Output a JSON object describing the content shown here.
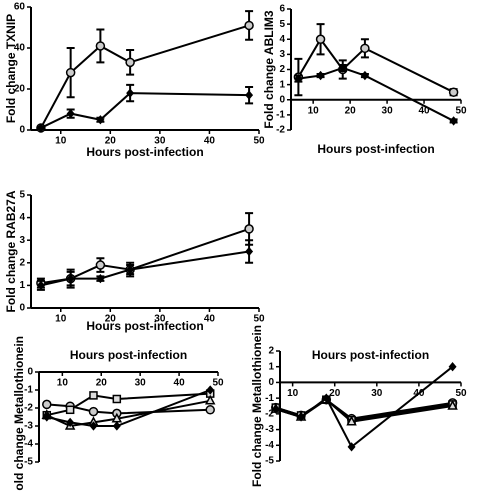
{
  "chart_data": [
    {
      "type": "line",
      "x_label": "Hours post-infection",
      "y_label": "Fold change TXNIP",
      "xlabel_position": "bottom",
      "xlim": [
        4,
        50
      ],
      "ylim": [
        0,
        60
      ],
      "xticks": [
        10,
        20,
        30,
        40,
        50
      ],
      "yticks": [
        0,
        20,
        40,
        60
      ],
      "x": [
        6,
        12,
        18,
        24,
        48
      ],
      "series": [
        {
          "color": "#000000",
          "marker": "circle",
          "values": [
            1,
            28,
            41,
            33,
            51
          ],
          "errors": [
            0.5,
            12,
            8,
            6,
            7
          ]
        },
        {
          "color": "#000000",
          "marker": "diamond",
          "values": [
            1,
            8,
            5,
            18,
            17
          ],
          "errors": [
            0.5,
            2,
            1,
            4,
            4
          ]
        }
      ]
    },
    {
      "type": "line",
      "x_label": "Hours post-infection",
      "y_label": "Fold change ABLIM3",
      "xlabel_position": "bottom",
      "xlim": [
        4,
        50
      ],
      "ylim": [
        -2,
        6
      ],
      "xticks": [
        10,
        20,
        30,
        40,
        50
      ],
      "yticks": [
        -2,
        -1,
        0,
        1,
        2,
        3,
        4,
        5,
        6
      ],
      "x": [
        6,
        12,
        18,
        24,
        48
      ],
      "series": [
        {
          "color": "#000000",
          "marker": "circle",
          "values": [
            1.5,
            4,
            2,
            3.4,
            0.5
          ],
          "errors": [
            1.2,
            1,
            0.6,
            0.6,
            0.2
          ]
        },
        {
          "color": "#000000",
          "marker": "diamond",
          "values": [
            1.4,
            1.6,
            2.1,
            1.6,
            -1.4
          ],
          "errors": [
            0.2,
            0.1,
            0.2,
            0.1,
            0.1
          ]
        }
      ]
    },
    {
      "type": "line",
      "x_label": "Hours post-infection",
      "y_label": "Fold change RAB27A",
      "xlabel_position": "bottom",
      "xlim": [
        4,
        50
      ],
      "ylim": [
        0,
        5
      ],
      "xticks": [
        10,
        20,
        30,
        40,
        50
      ],
      "yticks": [
        0,
        1,
        2,
        3,
        4,
        5
      ],
      "x": [
        6,
        12,
        18,
        24,
        48
      ],
      "series": [
        {
          "color": "#000000",
          "marker": "circle",
          "values": [
            1.1,
            1.3,
            1.9,
            1.7,
            3.5
          ],
          "errors": [
            0.2,
            0.3,
            0.3,
            0.2,
            0.7
          ]
        },
        {
          "color": "#000000",
          "marker": "diamond",
          "values": [
            1,
            1.3,
            1.3,
            1.7,
            2.5
          ],
          "errors": [
            0.2,
            0.4,
            0.1,
            0.3,
            0.5
          ]
        }
      ]
    },
    {
      "type": "line",
      "x_label": "Hours post-infection",
      "y_label": "Fold change Metallothionein",
      "xlabel_position": "top",
      "xlim": [
        4,
        50
      ],
      "ylim": [
        -5,
        0
      ],
      "xticks": [
        10,
        20,
        30,
        40,
        50
      ],
      "yticks": [
        -5,
        -4,
        -3,
        -2,
        -1,
        0
      ],
      "x": [
        6,
        12,
        18,
        24,
        48
      ],
      "series": [
        {
          "color": "#000000",
          "marker": "circle",
          "values": [
            -1.8,
            -1.9,
            -2.2,
            -2.3,
            -2.1
          ]
        },
        {
          "color": "#000000",
          "marker": "square",
          "values": [
            -2.4,
            -2.1,
            -1.3,
            -1.5,
            -1.2
          ]
        },
        {
          "color": "#000000",
          "marker": "triangle",
          "values": [
            -2.4,
            -3.0,
            -2.8,
            -2.6,
            -1.6
          ]
        },
        {
          "color": "#000000",
          "marker": "diamond",
          "values": [
            -2.5,
            -2.8,
            -3.0,
            -3.0,
            -1.0
          ]
        }
      ]
    },
    {
      "type": "line",
      "x_label": "Hours post-infection",
      "y_label": "Fold change Metallothionein",
      "xlabel_position": "top",
      "xlim": [
        7,
        50
      ],
      "ylim": [
        -5,
        2
      ],
      "xticks": [
        10,
        20,
        30,
        40,
        50
      ],
      "yticks": [
        -5,
        -4,
        -3,
        -2,
        -1,
        0,
        1,
        2
      ],
      "x": [
        6,
        12,
        18,
        24,
        48
      ],
      "series": [
        {
          "color": "#000000",
          "marker": "circle",
          "values": [
            -1.6,
            -2.1,
            -1.1,
            -2.3,
            -1.3
          ]
        },
        {
          "color": "#000000",
          "marker": "square",
          "values": [
            -1.6,
            -2.1,
            -1.1,
            -2.4,
            -1.4
          ]
        },
        {
          "color": "#000000",
          "marker": "triangle",
          "values": [
            -1.7,
            -2.2,
            -1.1,
            -2.5,
            -1.5
          ]
        },
        {
          "color": "#000000",
          "marker": "diamond",
          "values": [
            -1.7,
            -2.2,
            -1.0,
            -4.1,
            1.0
          ]
        }
      ]
    }
  ]
}
